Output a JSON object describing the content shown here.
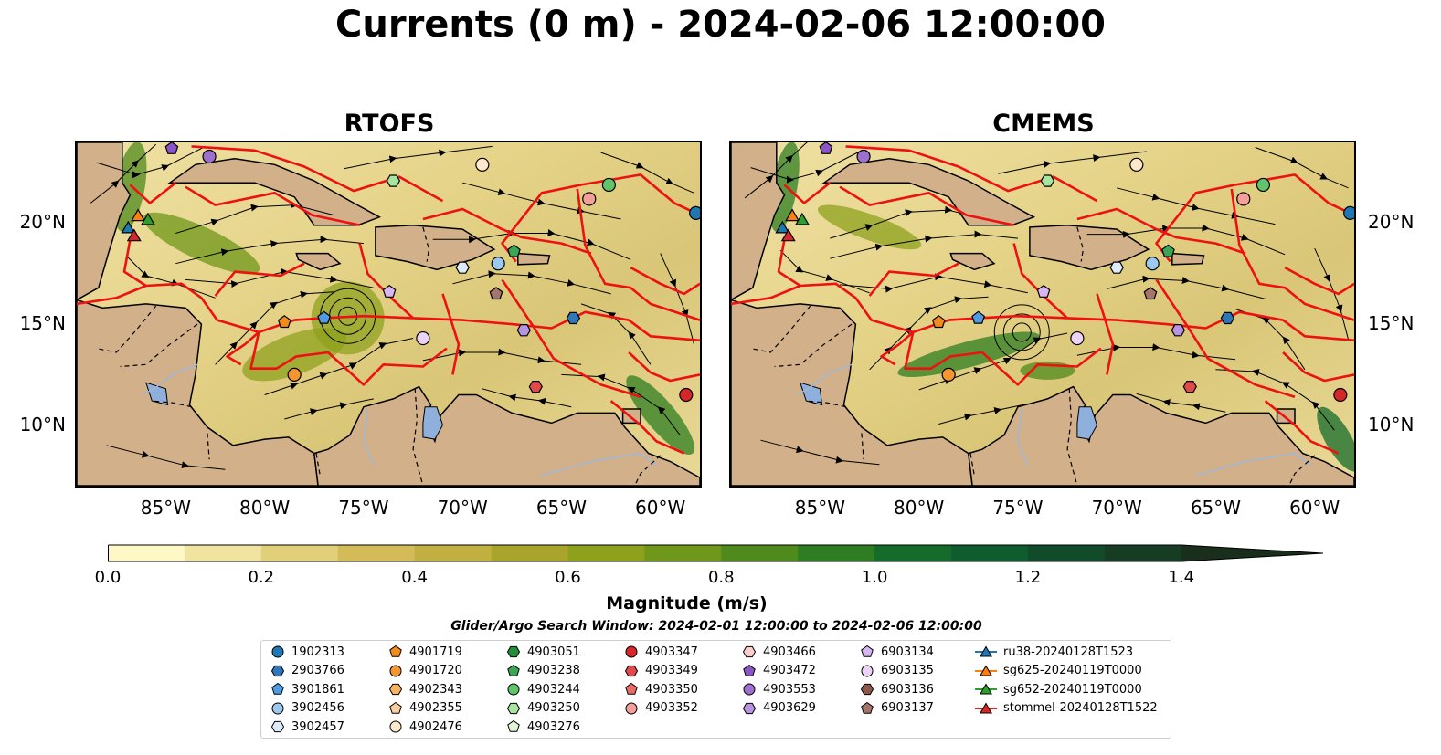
{
  "figure": {
    "title": "Currents (0 m) - 2024-02-06 12:00:00"
  },
  "panels": [
    {
      "title": "RTOFS"
    },
    {
      "title": "CMEMS"
    }
  ],
  "map": {
    "extent_lon": [
      -89.5,
      -58.0
    ],
    "extent_lat": [
      7.0,
      24.0
    ],
    "lat_ticks": [
      "20°N",
      "15°N",
      "10°N"
    ],
    "lon_ticks": [
      "85°W",
      "80°W",
      "75°W",
      "70°W",
      "65°W",
      "60°W"
    ],
    "colors": {
      "land": "#d1b08a",
      "lake": "#8fb0dc",
      "eez_lines": "#ee1111",
      "streamlines": "#000000"
    }
  },
  "colorbar": {
    "title": "Magnitude (m/s)",
    "tick_labels": [
      "0.0",
      "0.2",
      "0.4",
      "0.6",
      "0.8",
      "1.0",
      "1.2",
      "1.4"
    ],
    "range": [
      0.0,
      1.5
    ],
    "extend": "max",
    "colors": [
      "#fef7c6",
      "#f1e3a0",
      "#e2cf79",
      "#d3bb57",
      "#c2b040",
      "#a9a52c",
      "#8ea11d",
      "#6f9719",
      "#4f8a1c",
      "#2e7d22",
      "#146b2a",
      "#0f5d2e",
      "#124b2a",
      "#173c24",
      "#1a2e1c"
    ]
  },
  "search_window": "Glider/Argo Search Window: 2024-02-01 12:00:00 to 2024-02-06 12:00:00",
  "legend": [
    [
      {
        "label": "1902313",
        "marker": "circle",
        "color": "#1f77b4"
      },
      {
        "label": "2903766",
        "marker": "hexagon",
        "color": "#2f77b8"
      },
      {
        "label": "3901861",
        "marker": "pentagon",
        "color": "#4f9ae0"
      },
      {
        "label": "3902456",
        "marker": "circle",
        "color": "#9ec9ee"
      },
      {
        "label": "3902457",
        "marker": "hexagon",
        "color": "#dcecfa"
      }
    ],
    [
      {
        "label": "4901719",
        "marker": "pentagon",
        "color": "#f28a1c"
      },
      {
        "label": "4901720",
        "marker": "circle",
        "color": "#f5962e"
      },
      {
        "label": "4902343",
        "marker": "hexagon",
        "color": "#f9b262"
      },
      {
        "label": "4902355",
        "marker": "pentagon",
        "color": "#fccf9c"
      },
      {
        "label": "4902476",
        "marker": "circle",
        "color": "#fee8cc"
      }
    ],
    [
      {
        "label": "4903051",
        "marker": "hexagon",
        "color": "#1f8f3a"
      },
      {
        "label": "4903238",
        "marker": "pentagon",
        "color": "#38a653"
      },
      {
        "label": "4903244",
        "marker": "circle",
        "color": "#5fc46a"
      },
      {
        "label": "4903250",
        "marker": "hexagon",
        "color": "#a8e6a0"
      },
      {
        "label": "4903276",
        "marker": "pentagon",
        "color": "#dff7d4"
      }
    ],
    [
      {
        "label": "4903347",
        "marker": "circle",
        "color": "#d62728"
      },
      {
        "label": "4903349",
        "marker": "hexagon",
        "color": "#e04a4a"
      },
      {
        "label": "4903350",
        "marker": "pentagon",
        "color": "#ea6a6a"
      },
      {
        "label": "4903352",
        "marker": "circle",
        "color": "#f4a09a"
      }
    ],
    [
      {
        "label": "4903466",
        "marker": "hexagon",
        "color": "#fbd0cc"
      },
      {
        "label": "4903472",
        "marker": "pentagon",
        "color": "#8a55c4"
      },
      {
        "label": "4903553",
        "marker": "circle",
        "color": "#9d6fce"
      },
      {
        "label": "4903629",
        "marker": "hexagon",
        "color": "#b893e0"
      }
    ],
    [
      {
        "label": "6903134",
        "marker": "pentagon",
        "color": "#d7b6f2"
      },
      {
        "label": "6903135",
        "marker": "circle",
        "color": "#ecd4f8"
      },
      {
        "label": "6903136",
        "marker": "hexagon",
        "color": "#8c564b"
      },
      {
        "label": "6903137",
        "marker": "pentagon",
        "color": "#a6746a"
      }
    ],
    [
      {
        "label": "ru38-20240128T1523",
        "marker": "triangle",
        "color": "#1f77b4"
      },
      {
        "label": "sg625-20240119T0000",
        "marker": "triangle",
        "color": "#ff7f0e"
      },
      {
        "label": "sg652-20240119T0000",
        "marker": "triangle",
        "color": "#2ca02c"
      },
      {
        "label": "stommel-20240128T1522",
        "marker": "triangle",
        "color": "#d62728"
      }
    ]
  ],
  "floats": [
    {
      "id": "4903472",
      "lon": -84.7,
      "lat": 23.7
    },
    {
      "id": "4903553",
      "lon": -82.8,
      "lat": 23.3
    },
    {
      "id": "4903250",
      "lon": -73.5,
      "lat": 22.1
    },
    {
      "id": "4902476",
      "lon": -69.0,
      "lat": 22.9
    },
    {
      "id": "4903244",
      "lon": -62.6,
      "lat": 21.9
    },
    {
      "id": "4903352",
      "lon": -63.6,
      "lat": 21.2
    },
    {
      "id": "1902313",
      "lon": -58.2,
      "lat": 20.5
    },
    {
      "id": "4903238",
      "lon": -67.4,
      "lat": 18.6
    },
    {
      "id": "3902457",
      "lon": -70.0,
      "lat": 17.8
    },
    {
      "id": "3902456",
      "lon": -68.2,
      "lat": 18.0
    },
    {
      "id": "6903134",
      "lon": -73.7,
      "lat": 16.6
    },
    {
      "id": "6903137",
      "lon": -68.3,
      "lat": 16.5
    },
    {
      "id": "3901861",
      "lon": -77.0,
      "lat": 15.3
    },
    {
      "id": "4901719",
      "lon": -79.0,
      "lat": 15.1
    },
    {
      "id": "4903629",
      "lon": -66.9,
      "lat": 14.7
    },
    {
      "id": "2903766",
      "lon": -64.4,
      "lat": 15.3
    },
    {
      "id": "6903135",
      "lon": -72.0,
      "lat": 14.3
    },
    {
      "id": "4901720",
      "lon": -78.5,
      "lat": 12.5
    },
    {
      "id": "4903349",
      "lon": -66.3,
      "lat": 11.9
    },
    {
      "id": "4903347",
      "lon": -58.7,
      "lat": 11.5
    }
  ],
  "gliders": [
    {
      "id": "ru38-20240128T1523",
      "lon": -86.9,
      "lat": 19.8
    },
    {
      "id": "sg625-20240119T0000",
      "lon": -86.4,
      "lat": 20.4
    },
    {
      "id": "sg652-20240119T0000",
      "lon": -85.9,
      "lat": 20.2
    },
    {
      "id": "stommel-20240128T1522",
      "lon": -86.6,
      "lat": 19.4
    }
  ]
}
